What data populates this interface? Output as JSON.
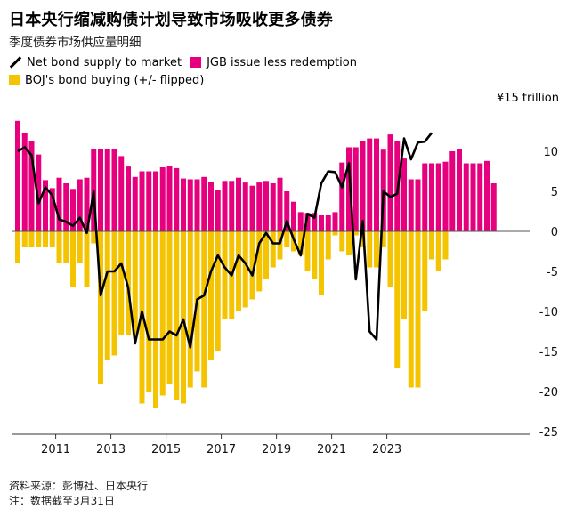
{
  "title": "日本央行缩减购债计划导致市场吸收更多债券",
  "subtitle": "季度债券市场供应量明细",
  "legend": {
    "line": "Net bond supply to market",
    "pink": "JGB issue less redemption",
    "yellow": "BOJ's bond buying (+/- flipped)"
  },
  "unit_label": "¥15 trillion",
  "colors": {
    "pink": "#e6007e",
    "yellow": "#f5c400",
    "line": "#000000",
    "axis": "#999999"
  },
  "source": "资料来源：彭博社、日本央行",
  "note": "注：数据截至3月31日",
  "chart_data": {
    "type": "bar",
    "ylim": [
      -25,
      15
    ],
    "yticks": [
      10,
      5,
      0,
      -5,
      -10,
      -15,
      -20,
      -25
    ],
    "ytick_labels": [
      "10",
      "5",
      "0",
      "-5",
      "-10",
      "-15",
      "-20",
      "-25"
    ],
    "xticks": [
      2011,
      2013,
      2015,
      2017,
      2019,
      2021,
      2023
    ],
    "x_start": 2010.0,
    "period": 0.25,
    "series": [
      {
        "name": "JGB issue less redemption",
        "values": [
          13.8,
          12.3,
          11.3,
          9.6,
          6.4,
          5.4,
          6.7,
          6.0,
          5.3,
          6.5,
          6.7,
          10.3,
          10.3,
          10.3,
          10.3,
          9.4,
          8.1,
          6.8,
          7.5,
          7.5,
          7.5,
          8.0,
          8.2,
          7.9,
          6.6,
          6.5,
          6.5,
          6.8,
          6.2,
          5.2,
          6.3,
          6.3,
          6.7,
          6.1,
          5.7,
          6.1,
          6.3,
          6.0,
          6.7,
          5.0,
          3.7,
          2.4,
          2.3,
          2.3,
          2.0,
          2.0,
          2.4,
          8.6,
          10.5,
          10.5,
          11.3,
          11.6,
          11.6,
          10.2,
          12.1,
          11.3,
          9.1,
          6.5,
          6.5,
          8.5,
          8.5,
          8.5,
          8.7,
          10.0,
          10.3,
          8.5,
          8.5,
          8.5,
          8.8,
          6.0
        ]
      },
      {
        "name": "BOJ's bond buying (+/- flipped)",
        "values": [
          -4.0,
          -2.0,
          -2.0,
          -2.0,
          -2.0,
          -2.0,
          -4.0,
          -4.0,
          -7.0,
          -4.0,
          -7.0,
          -1.5,
          -19.0,
          -16.0,
          -15.5,
          -13.0,
          -13.0,
          -13.0,
          -21.5,
          -20.0,
          -22.0,
          -20.5,
          -19.0,
          -21.0,
          -21.5,
          -19.5,
          -17.5,
          -19.5,
          -16.0,
          -15.0,
          -11.0,
          -11.0,
          -10.0,
          -9.5,
          -8.5,
          -7.5,
          -6.0,
          -4.5,
          -3.5,
          -2.0,
          -2.5,
          -3.0,
          -5.0,
          -6.0,
          -8.0,
          -3.5,
          -0.5,
          -2.5,
          -3.0,
          -0.5,
          -2.0,
          -4.5,
          -4.5,
          -2.0,
          -7.0,
          -17.0,
          -11.0,
          -19.5,
          -19.5,
          -10.0,
          -3.5,
          -5.0,
          -3.5,
          0.0,
          0.0,
          0.0,
          0.0,
          0.0,
          0.0,
          0.0
        ]
      },
      {
        "name": "Net bond supply to market",
        "values": [
          10.0,
          10.5,
          9.5,
          3.5,
          5.5,
          4.5,
          1.5,
          1.2,
          0.7,
          1.7,
          -0.2,
          5.0,
          -8.0,
          -5.0,
          -5.0,
          -4.0,
          -7.0,
          -14.0,
          -10.0,
          -13.5,
          -13.5,
          -13.5,
          -12.5,
          -13.0,
          -11.0,
          -14.5,
          -8.5,
          -8.0,
          -5.0,
          -3.0,
          -4.5,
          -5.5,
          -3.0,
          -4.0,
          -5.5,
          -1.5,
          -0.2,
          -1.5,
          -1.5,
          1.3,
          -1.0,
          -3.0,
          2.2,
          1.7,
          6.0,
          7.5,
          7.4,
          5.5,
          8.5,
          -6.0,
          1.3,
          -12.5,
          -13.5,
          5.0,
          4.3,
          4.7,
          11.6,
          9.0,
          11.1,
          11.2,
          12.3,
          0,
          0,
          0,
          0,
          0,
          0,
          0,
          0,
          0
        ]
      }
    ]
  }
}
